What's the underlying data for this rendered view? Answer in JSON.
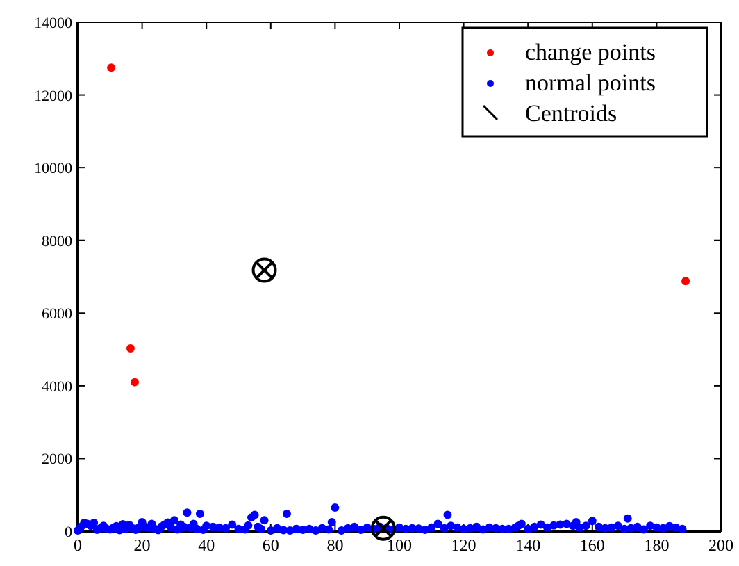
{
  "chart_data": {
    "type": "scatter",
    "xlim": [
      0,
      200
    ],
    "ylim": [
      0,
      14000
    ],
    "xticks": [
      0,
      20,
      40,
      60,
      80,
      100,
      120,
      140,
      160,
      180,
      200
    ],
    "yticks": [
      0,
      2000,
      4000,
      6000,
      8000,
      10000,
      12000,
      14000
    ],
    "legend": "top right",
    "grid": false,
    "series": [
      {
        "name": "change points",
        "color": "#ff0000",
        "marker": "circle",
        "x": [
          10.4,
          16.4,
          17.7,
          189
        ],
        "values": [
          12750,
          5030,
          4100,
          6880
        ]
      },
      {
        "name": "normal points",
        "color": "#0000ff",
        "marker": "circle",
        "x": [
          0,
          1,
          2,
          3,
          4,
          5,
          6,
          7,
          8,
          9,
          10,
          11,
          12,
          13,
          14,
          15,
          16,
          17,
          18,
          19,
          20,
          21,
          22,
          23,
          24,
          25,
          26,
          27,
          28,
          29,
          30,
          31,
          32,
          33,
          34,
          35,
          36,
          37,
          38,
          39,
          40,
          42,
          44,
          46,
          48,
          50,
          52,
          53,
          54,
          55,
          56,
          57,
          58,
          60,
          62,
          64,
          65,
          66,
          68,
          70,
          72,
          74,
          76,
          78,
          79,
          80,
          82,
          84,
          86,
          88,
          90,
          92,
          94,
          96,
          98,
          100,
          102,
          104,
          106,
          108,
          110,
          112,
          114,
          115,
          116,
          118,
          120,
          122,
          124,
          126,
          128,
          130,
          132,
          134,
          136,
          137,
          138,
          140,
          142,
          144,
          146,
          148,
          150,
          152,
          154,
          155,
          156,
          158,
          160,
          162,
          164,
          166,
          168,
          170,
          171,
          172,
          174,
          176,
          178,
          180,
          182,
          184,
          186,
          188
        ],
        "values": [
          20,
          120,
          230,
          200,
          150,
          230,
          40,
          80,
          150,
          60,
          50,
          90,
          140,
          30,
          190,
          60,
          170,
          80,
          40,
          100,
          250,
          120,
          90,
          200,
          60,
          30,
          130,
          180,
          240,
          100,
          300,
          50,
          180,
          120,
          510,
          90,
          200,
          60,
          480,
          40,
          150,
          120,
          100,
          80,
          180,
          60,
          50,
          160,
          380,
          450,
          120,
          60,
          300,
          20,
          80,
          30,
          480,
          20,
          60,
          40,
          60,
          20,
          80,
          50,
          250,
          650,
          20,
          80,
          120,
          40,
          100,
          60,
          120,
          80,
          40,
          100,
          60,
          80,
          70,
          40,
          100,
          200,
          80,
          450,
          150,
          100,
          60,
          80,
          120,
          50,
          100,
          80,
          60,
          60,
          100,
          150,
          200,
          60,
          120,
          180,
          100,
          160,
          180,
          200,
          150,
          250,
          100,
          150,
          280,
          120,
          80,
          100,
          150,
          60,
          350,
          80,
          120,
          50,
          150,
          100,
          80,
          140,
          100,
          60
        ]
      },
      {
        "name": "Centroids",
        "color": "#000000",
        "marker": "cross",
        "x": [
          58,
          95
        ],
        "values": [
          7180,
          80
        ]
      }
    ]
  }
}
